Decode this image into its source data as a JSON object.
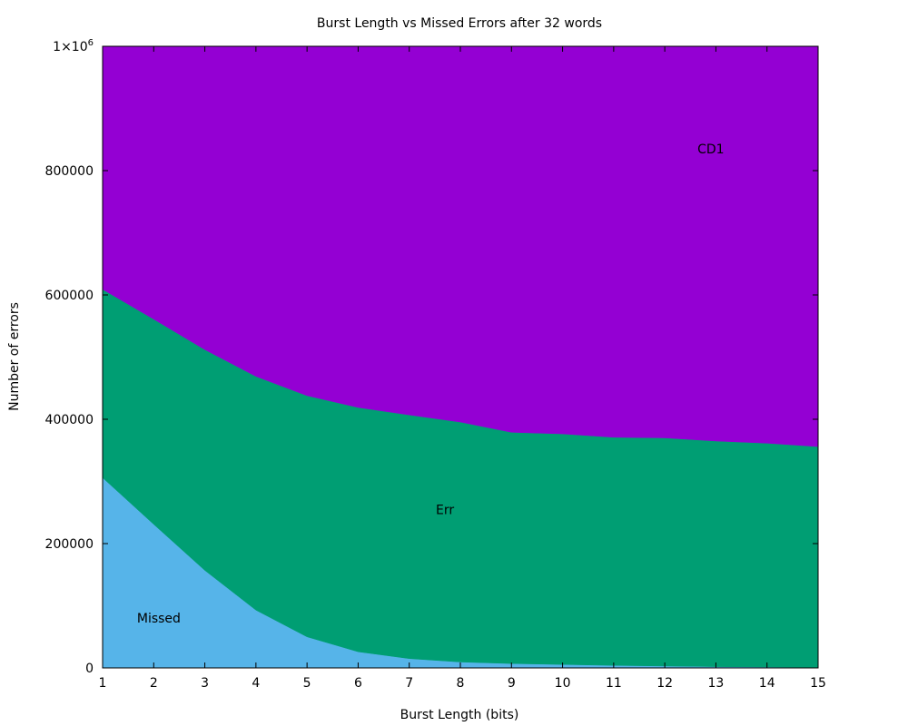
{
  "chart_data": {
    "type": "area",
    "stacked": true,
    "title": "Burst Length vs Missed Errors after 32 words",
    "xlabel": "Burst Length (bits)",
    "ylabel": "Number of errors",
    "x": [
      1,
      2,
      3,
      4,
      5,
      6,
      7,
      8,
      9,
      10,
      11,
      12,
      13,
      14,
      15
    ],
    "xlim": [
      1,
      15
    ],
    "ylim": [
      0,
      1000000
    ],
    "x_ticks": [
      "1",
      "2",
      "3",
      "4",
      "5",
      "6",
      "7",
      "8",
      "9",
      "10",
      "11",
      "12",
      "13",
      "14",
      "15"
    ],
    "y_ticks": [
      {
        "value": 0,
        "label": "0"
      },
      {
        "value": 200000,
        "label": "200000"
      },
      {
        "value": 400000,
        "label": "400000"
      },
      {
        "value": 600000,
        "label": "600000"
      },
      {
        "value": 800000,
        "label": "800000"
      },
      {
        "value": 1000000,
        "label": "1×10",
        "sup": "6"
      }
    ],
    "grid": false,
    "series": [
      {
        "name": "Missed",
        "color": "#56b4e9",
        "values": [
          306000,
          231000,
          157000,
          93000,
          50000,
          26000,
          15000,
          9500,
          7000,
          5500,
          4000,
          3000,
          2000,
          1500,
          1000
        ]
      },
      {
        "name": "Err",
        "color": "#009e73",
        "values": [
          303000,
          330000,
          355000,
          376000,
          388000,
          393000,
          392000,
          386000,
          372000,
          371000,
          367000,
          367000,
          363000,
          360000,
          355000
        ]
      },
      {
        "name": "CD1",
        "color": "#9400d3",
        "values": [
          391000,
          439000,
          488000,
          531000,
          562000,
          581000,
          593000,
          604500,
          621000,
          623500,
          629000,
          630000,
          635000,
          638500,
          644000
        ]
      }
    ],
    "annotations": [
      {
        "text": "Missed",
        "x": 2.1,
        "y": 80000
      },
      {
        "text": "Err",
        "x": 7.7,
        "y": 255000
      },
      {
        "text": "CD1",
        "x": 12.9,
        "y": 835000
      }
    ]
  }
}
